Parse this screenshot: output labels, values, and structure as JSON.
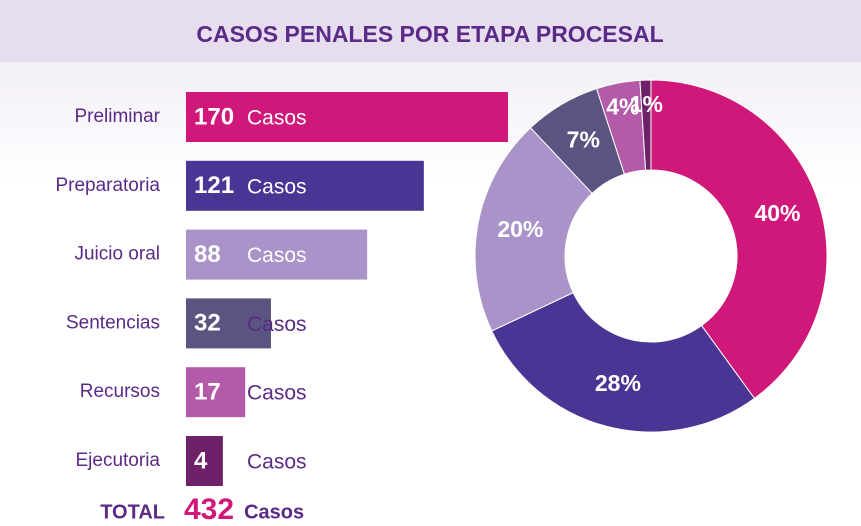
{
  "chart_data": [
    {
      "type": "bar",
      "title": "CASOS PENALES POR ETAPA PROCESAL",
      "categories": [
        "Preliminar",
        "Preparatoria",
        "Juicio oral",
        "Sentencias",
        "Recursos",
        "Ejecutoria"
      ],
      "values": [
        170,
        121,
        88,
        32,
        17,
        4
      ],
      "colors": [
        "#d0177a",
        "#4a3494",
        "#a993c8",
        "#5a5580",
        "#b35aa8",
        "#6e2068"
      ],
      "unit": "Casos",
      "total_label": "TOTAL",
      "total": 432,
      "xlim": [
        0,
        170
      ]
    },
    {
      "type": "pie",
      "values": [
        40,
        28,
        20,
        7,
        4,
        1
      ],
      "value_labels": [
        "40%",
        "28%",
        "20%",
        "7%",
        "4%",
        "1%"
      ],
      "colors": [
        "#d0177a",
        "#4a3494",
        "#a993c8",
        "#5a5580",
        "#b35aa8",
        "#6e2068"
      ]
    }
  ]
}
